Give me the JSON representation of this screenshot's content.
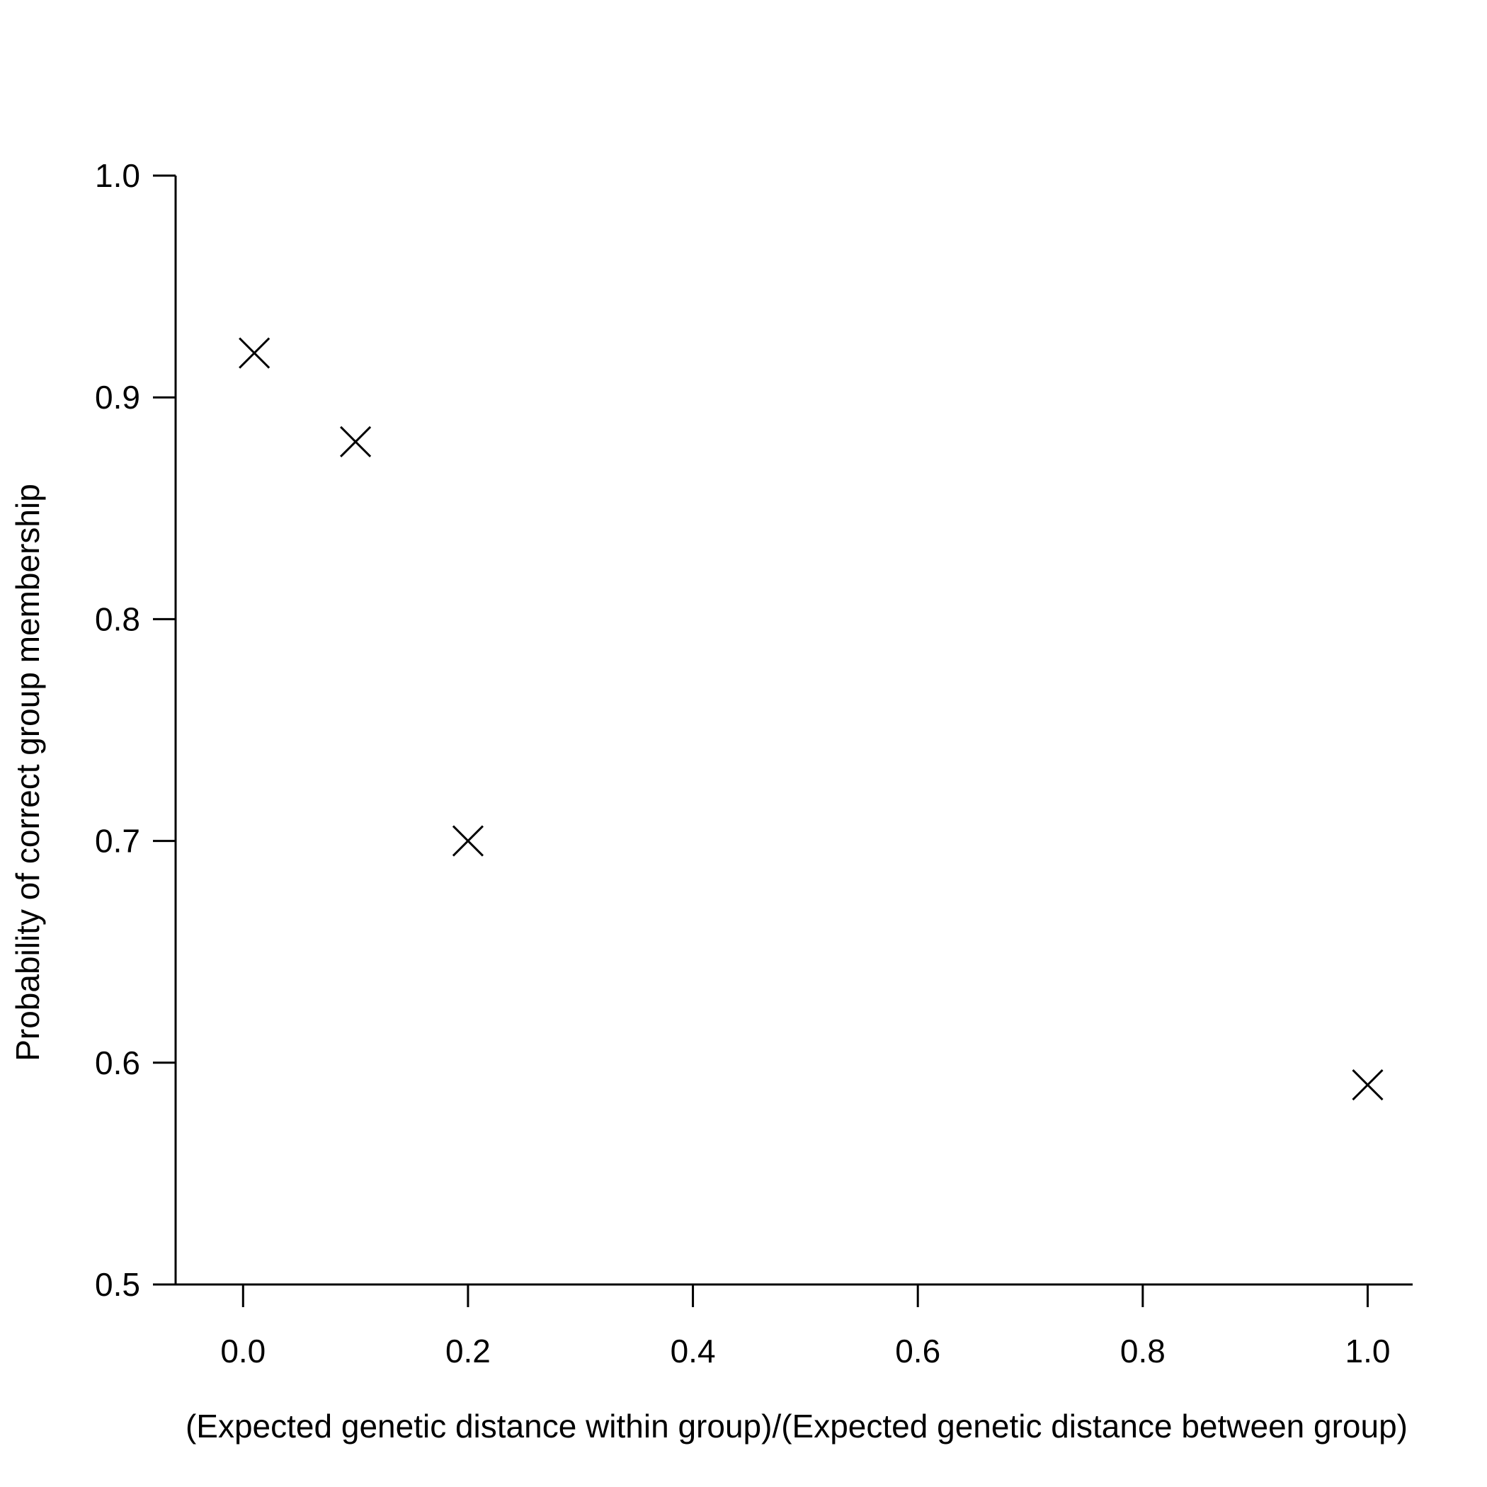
{
  "chart_data": {
    "type": "scatter",
    "title": "",
    "xlabel": "(Expected genetic distance within group)/(Expected genetic distance between group)",
    "ylabel": "Probability of correct group membership",
    "xlim": [
      -0.06,
      1.04
    ],
    "ylim": [
      0.5,
      1.0
    ],
    "x_ticks": [
      "0.0",
      "0.2",
      "0.4",
      "0.6",
      "0.8",
      "1.0"
    ],
    "y_ticks": [
      "0.5",
      "0.6",
      "0.7",
      "0.8",
      "0.9",
      "1.0"
    ],
    "grid": false,
    "marker": "x",
    "points": [
      {
        "x": 0.01,
        "y": 0.92
      },
      {
        "x": 0.1,
        "y": 0.88
      },
      {
        "x": 0.2,
        "y": 0.7
      },
      {
        "x": 1.0,
        "y": 0.59
      }
    ]
  }
}
